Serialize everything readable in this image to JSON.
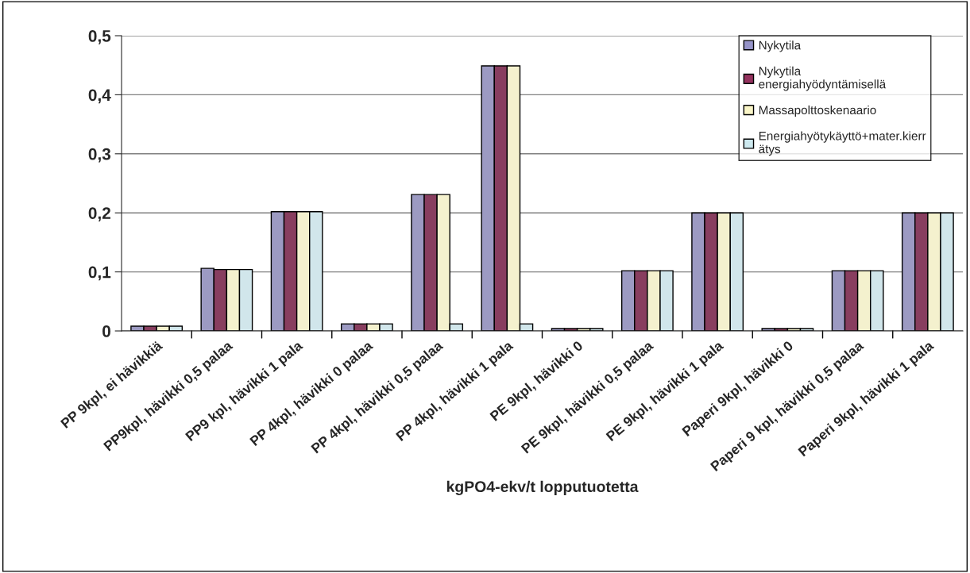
{
  "chart_data": {
    "type": "bar",
    "xlabel": "kgPO4-ekv/t lopputuotetta",
    "categories": [
      "PP 9kpl, ei hävikkiä",
      "PP9kpl, hävikki 0,5 palaa",
      "PP9 kpl, hävikki 1 pala",
      "PP 4kpl, hävikki 0 palaa",
      "PP 4kpl, hävikki 0,5 palaa",
      "PP 4kpl, hävikki 1 pala",
      "PE 9kpl, hävikki 0",
      "PE 9kpl, hävikki 0,5 palaa",
      "PE 9kpl, hävikki 1 pala",
      "Paperi 9kpl, hävikki 0",
      "Paperi 9 kpl, hävikki 0,5 palaa",
      "Paperi 9kpl, hävikki 1 pala"
    ],
    "series": [
      {
        "name": "Nykytila",
        "color": "#9694c8",
        "values": [
          0.008,
          0.106,
          0.202,
          0.012,
          0.231,
          0.449,
          0.004,
          0.102,
          0.2,
          0.004,
          0.102,
          0.2
        ]
      },
      {
        "name": "Nykytila\nenergiahyödyntämisellä",
        "color": "#94325e",
        "values": [
          0.008,
          0.104,
          0.202,
          0.012,
          0.231,
          0.449,
          0.004,
          0.102,
          0.2,
          0.004,
          0.102,
          0.2
        ]
      },
      {
        "name": "Massapolttoskenaario",
        "color": "#faf6c8",
        "values": [
          0.008,
          0.104,
          0.202,
          0.012,
          0.231,
          0.449,
          0.004,
          0.102,
          0.2,
          0.004,
          0.102,
          0.2
        ]
      },
      {
        "name": "Energiahyötykäyttö+mater.kierr\nätys",
        "color": "#cde9ef",
        "values": [
          0.008,
          0.104,
          0.202,
          0.012,
          0.012,
          0.012,
          0.004,
          0.102,
          0.2,
          0.004,
          0.102,
          0.2
        ]
      }
    ],
    "ylim": [
      0,
      0.5
    ],
    "yticks": [
      {
        "value": 0,
        "label": "0"
      },
      {
        "value": 0.1,
        "label": "0,1"
      },
      {
        "value": 0.2,
        "label": "0,2"
      },
      {
        "value": 0.3,
        "label": "0,3"
      },
      {
        "value": 0.4,
        "label": "0,4"
      },
      {
        "value": 0.5,
        "label": "0,5"
      }
    ],
    "grid": "y",
    "legend": "top right"
  }
}
